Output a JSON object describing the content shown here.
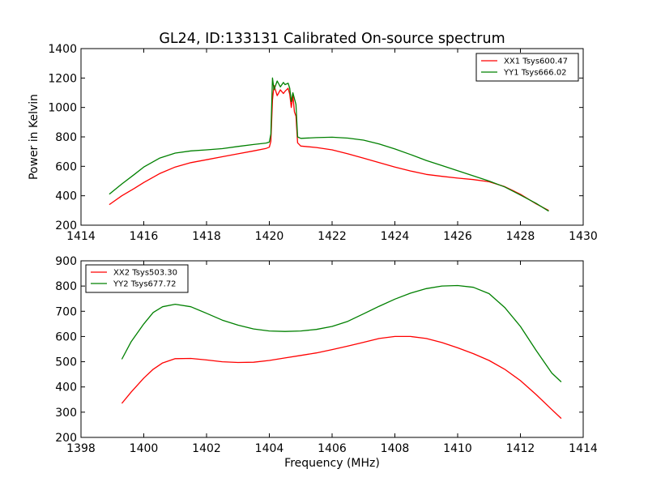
{
  "figure": {
    "title": "GL24, ID:133131 Calibrated On-source spectrum"
  },
  "chart_data": [
    {
      "type": "line",
      "title": "GL24, ID:133131 Calibrated On-source spectrum",
      "xlabel": "",
      "ylabel": "Power in Kelvin",
      "xlim": [
        1414,
        1430
      ],
      "ylim": [
        200,
        1400
      ],
      "xticks": [
        1414,
        1416,
        1418,
        1420,
        1422,
        1424,
        1426,
        1428,
        1430
      ],
      "yticks": [
        200,
        400,
        600,
        800,
        1000,
        1200,
        1400
      ],
      "grid": false,
      "legend": "top-right",
      "series": [
        {
          "name": "XX1 Tsys600.47",
          "color": "#ff0000",
          "x": [
            1414.9,
            1415.3,
            1415.7,
            1416.0,
            1416.5,
            1417.0,
            1417.5,
            1418.0,
            1418.5,
            1419.0,
            1419.5,
            1419.9,
            1420.0,
            1420.05,
            1420.1,
            1420.15,
            1420.25,
            1420.35,
            1420.45,
            1420.5,
            1420.6,
            1420.65,
            1420.7,
            1420.75,
            1420.8,
            1420.85,
            1420.9,
            1421.0,
            1421.5,
            1422.0,
            1422.5,
            1423.0,
            1423.5,
            1424.0,
            1424.5,
            1425.0,
            1425.5,
            1426.0,
            1426.5,
            1427.0,
            1427.5,
            1428.0,
            1428.5,
            1428.9
          ],
          "y": [
            340,
            400,
            450,
            490,
            550,
            595,
            625,
            645,
            665,
            685,
            705,
            722,
            730,
            770,
            1050,
            1150,
            1080,
            1120,
            1095,
            1110,
            1130,
            1090,
            1000,
            1080,
            970,
            940,
            760,
            738,
            728,
            712,
            685,
            655,
            625,
            595,
            568,
            545,
            532,
            520,
            510,
            495,
            462,
            410,
            345,
            300
          ]
        },
        {
          "name": "YY1 Tsys666.02",
          "color": "#008000",
          "x": [
            1414.9,
            1415.3,
            1415.7,
            1416.0,
            1416.5,
            1417.0,
            1417.5,
            1418.0,
            1418.5,
            1419.0,
            1419.5,
            1419.9,
            1420.0,
            1420.05,
            1420.1,
            1420.15,
            1420.25,
            1420.35,
            1420.45,
            1420.5,
            1420.6,
            1420.65,
            1420.7,
            1420.75,
            1420.8,
            1420.85,
            1420.9,
            1421.0,
            1421.5,
            1422.0,
            1422.5,
            1423.0,
            1423.5,
            1424.0,
            1424.5,
            1425.0,
            1425.5,
            1426.0,
            1426.5,
            1427.0,
            1427.5,
            1428.0,
            1428.5,
            1428.9
          ],
          "y": [
            410,
            480,
            545,
            595,
            655,
            690,
            705,
            712,
            720,
            735,
            748,
            758,
            765,
            820,
            1200,
            1120,
            1180,
            1140,
            1170,
            1155,
            1165,
            1130,
            1040,
            1100,
            1060,
            1020,
            800,
            790,
            795,
            798,
            792,
            778,
            752,
            718,
            680,
            640,
            605,
            570,
            535,
            500,
            460,
            405,
            348,
            295
          ]
        }
      ]
    },
    {
      "type": "line",
      "title": "",
      "xlabel": "Frequency (MHz)",
      "ylabel": "",
      "xlim": [
        1398,
        1414
      ],
      "ylim": [
        200,
        900
      ],
      "xticks": [
        1398,
        1400,
        1402,
        1404,
        1406,
        1408,
        1410,
        1412,
        1414
      ],
      "yticks": [
        200,
        300,
        400,
        500,
        600,
        700,
        800,
        900
      ],
      "grid": false,
      "legend": "top-left",
      "series": [
        {
          "name": "XX2 Tsys503.30",
          "color": "#ff0000",
          "x": [
            1399.3,
            1399.6,
            1400.0,
            1400.3,
            1400.6,
            1401.0,
            1401.5,
            1402.0,
            1402.5,
            1403.0,
            1403.5,
            1404.0,
            1404.5,
            1405.0,
            1405.5,
            1406.0,
            1406.5,
            1407.0,
            1407.5,
            1408.0,
            1408.5,
            1409.0,
            1409.5,
            1410.0,
            1410.5,
            1411.0,
            1411.5,
            1412.0,
            1412.5,
            1413.0,
            1413.3
          ],
          "y": [
            335,
            380,
            435,
            470,
            495,
            512,
            513,
            507,
            500,
            497,
            498,
            505,
            515,
            525,
            535,
            548,
            562,
            577,
            592,
            600,
            600,
            592,
            576,
            555,
            532,
            505,
            470,
            425,
            370,
            310,
            275
          ]
        },
        {
          "name": "YY2 Tsys677.72",
          "color": "#008000",
          "x": [
            1399.3,
            1399.6,
            1400.0,
            1400.3,
            1400.6,
            1401.0,
            1401.5,
            1402.0,
            1402.5,
            1403.0,
            1403.5,
            1404.0,
            1404.5,
            1405.0,
            1405.5,
            1406.0,
            1406.5,
            1407.0,
            1407.5,
            1408.0,
            1408.5,
            1409.0,
            1409.5,
            1410.0,
            1410.5,
            1411.0,
            1411.5,
            1412.0,
            1412.5,
            1413.0,
            1413.3
          ],
          "y": [
            510,
            580,
            650,
            695,
            718,
            728,
            718,
            692,
            665,
            645,
            630,
            622,
            620,
            622,
            628,
            640,
            660,
            690,
            720,
            748,
            772,
            790,
            800,
            802,
            795,
            770,
            715,
            640,
            545,
            455,
            420
          ]
        }
      ]
    }
  ]
}
